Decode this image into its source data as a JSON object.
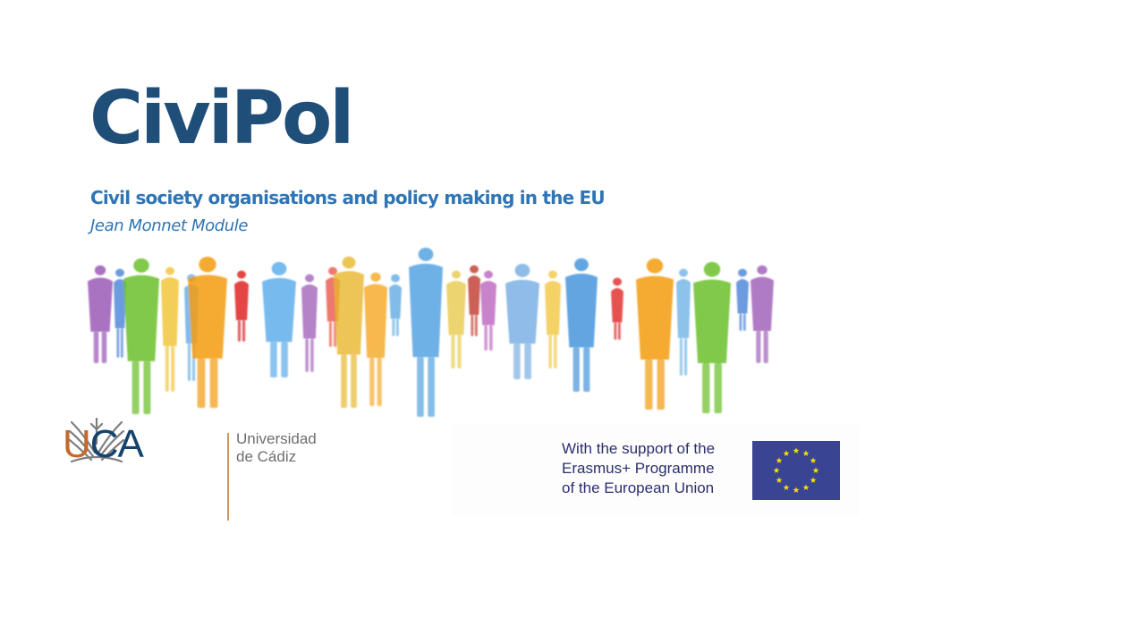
{
  "slide": {
    "title": "CiviPol",
    "subtitle": "Civil society organisations and policy making in the EU",
    "tagline": "Jean Monnet Module"
  },
  "uca_logo": {
    "acronym_u": "U",
    "acronym_ca": "CA",
    "name_line1": "Universidad",
    "name_line2": "de Cádiz"
  },
  "erasmus": {
    "line1": "With the support of the",
    "line2": "Erasmus+ Programme",
    "line3": "of the European Union"
  },
  "colors": {
    "title": "#1f4e79",
    "subtitle": "#2e75b6",
    "tagline": "#2e75b6",
    "erasmus_text": "#2b2f6e",
    "eu_flag_blue": "#394592",
    "eu_flag_star": "#ffdd00"
  },
  "icons": {
    "illustration": "watercolor-crowd-illustration",
    "uca_emblem": "uca-university-emblem",
    "eu_flag": "eu-flag-icon"
  }
}
